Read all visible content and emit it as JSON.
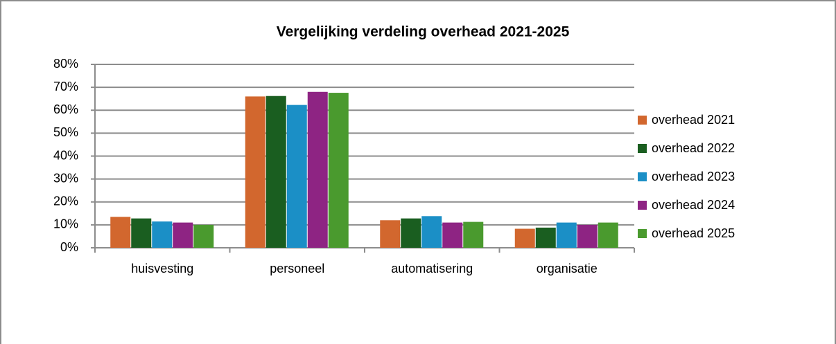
{
  "chart_data": {
    "type": "bar",
    "title": "Vergelijking verdeling overhead 2021-2025",
    "categories": [
      "huisvesting",
      "personeel",
      "automatisering",
      "organisatie"
    ],
    "series": [
      {
        "name": "overhead 2021",
        "color": "#d2672e",
        "values": [
          13.5,
          66,
          12,
          8.3
        ]
      },
      {
        "name": "overhead 2022",
        "color": "#1a5e20",
        "values": [
          12.8,
          66.2,
          12.8,
          8.8
        ]
      },
      {
        "name": "overhead 2023",
        "color": "#1b8fc6",
        "values": [
          11.5,
          62.3,
          13.8,
          11
        ]
      },
      {
        "name": "overhead 2024",
        "color": "#8e2483",
        "values": [
          11,
          68,
          11,
          10
        ]
      },
      {
        "name": "overhead 2025",
        "color": "#4a9a2e",
        "values": [
          10,
          67.6,
          11.3,
          11
        ]
      }
    ],
    "ylim": [
      0,
      80
    ],
    "yticks": [
      {
        "value": 0,
        "label": "0%"
      },
      {
        "value": 10,
        "label": "10%"
      },
      {
        "value": 20,
        "label": "20%"
      },
      {
        "value": 30,
        "label": "30%"
      },
      {
        "value": 40,
        "label": "40%"
      },
      {
        "value": 50,
        "label": "50%"
      },
      {
        "value": 60,
        "label": "60%"
      },
      {
        "value": 70,
        "label": "70%"
      },
      {
        "value": 80,
        "label": "80%"
      }
    ],
    "grid": true,
    "legend": "right"
  }
}
